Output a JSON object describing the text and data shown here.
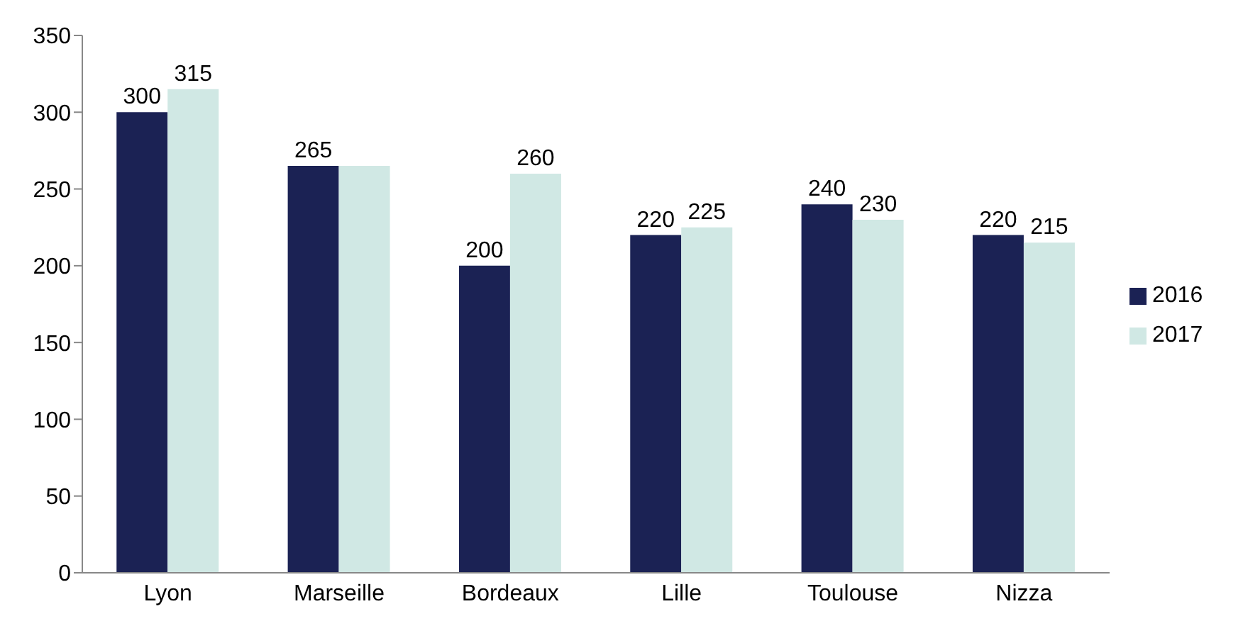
{
  "chart_data": {
    "type": "bar",
    "categories": [
      "Lyon",
      "Marseille",
      "Bordeaux",
      "Lille",
      "Toulouse",
      "Nizza"
    ],
    "series": [
      {
        "name": "2016",
        "color": "#1b2254",
        "values": [
          300,
          265,
          200,
          220,
          240,
          220
        ],
        "value_labels": [
          "300",
          "265",
          "200",
          "220",
          "240",
          "220"
        ]
      },
      {
        "name": "2017",
        "color": "#d0e8e4",
        "values": [
          315,
          265,
          260,
          225,
          230,
          215
        ],
        "value_labels": [
          "315",
          null,
          "260",
          "225",
          "230",
          "215"
        ]
      }
    ],
    "ylim": [
      0,
      350
    ],
    "yticks": [
      0,
      50,
      100,
      150,
      200,
      250,
      300,
      350
    ],
    "legend": "right"
  }
}
